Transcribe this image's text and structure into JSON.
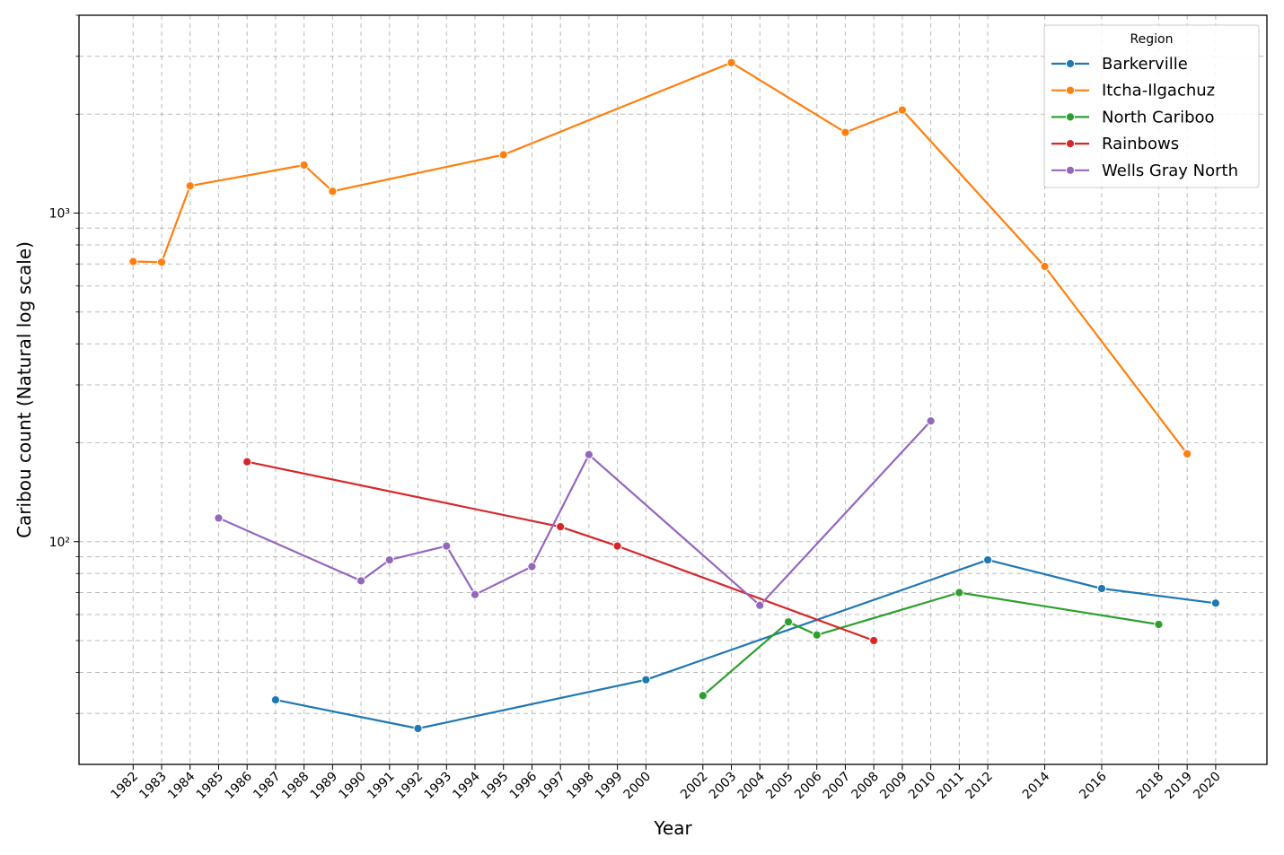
{
  "chart_data": {
    "type": "line",
    "xlabel": "Year",
    "ylabel": "Caribou count (Natural log scale)",
    "y_scale": "log",
    "ylim": [
      21,
      4000
    ],
    "y_major_ticks": [
      100,
      1000
    ],
    "y_major_tick_labels": [
      "10²",
      "10³"
    ],
    "x_ticks": [
      1982,
      1983,
      1984,
      1985,
      1986,
      1987,
      1988,
      1989,
      1990,
      1991,
      1992,
      1993,
      1994,
      1995,
      1996,
      1997,
      1998,
      1999,
      2000,
      2002,
      2003,
      2004,
      2005,
      2006,
      2007,
      2008,
      2009,
      2010,
      2011,
      2012,
      2014,
      2016,
      2018,
      2019,
      2020
    ],
    "xlim": [
      1980.1,
      2021.8
    ],
    "grid": true,
    "legend": {
      "title": "Region",
      "position": "top-right"
    },
    "series": [
      {
        "name": "Barkerville",
        "color": "#1f77b4",
        "x": [
          1987,
          1992,
          2000,
          2012,
          2016,
          2020
        ],
        "y": [
          33,
          27,
          38,
          88,
          72,
          65
        ]
      },
      {
        "name": "Itcha-Ilgachuz",
        "color": "#ff7f0e",
        "x": [
          1982,
          1983,
          1984,
          1988,
          1989,
          1995,
          2003,
          2007,
          2009,
          2014,
          2019
        ],
        "y": [
          712,
          709,
          1210,
          1400,
          1165,
          1505,
          2870,
          1760,
          2060,
          688,
          185
        ]
      },
      {
        "name": "North Cariboo",
        "color": "#2ca02c",
        "x": [
          2002,
          2005,
          2006,
          2011,
          2018
        ],
        "y": [
          34,
          57,
          52,
          70,
          56
        ]
      },
      {
        "name": "Rainbows",
        "color": "#d62728",
        "x": [
          1986,
          1997,
          1999,
          2008
        ],
        "y": [
          175,
          111,
          97,
          50
        ]
      },
      {
        "name": "Wells Gray North",
        "color": "#9467bd",
        "x": [
          1985,
          1990,
          1991,
          1993,
          1994,
          1996,
          1998,
          2004,
          2010
        ],
        "y": [
          118,
          76,
          88,
          97,
          69,
          84,
          184,
          64,
          233
        ]
      }
    ]
  }
}
